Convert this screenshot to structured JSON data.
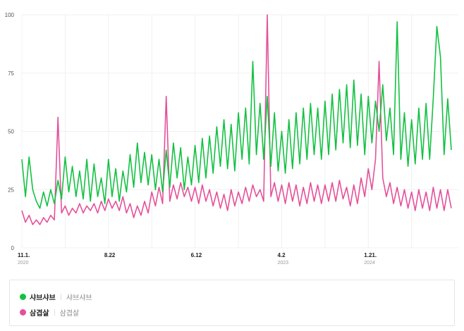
{
  "chart_data": {
    "type": "line",
    "title": "",
    "xlabel": "",
    "ylabel": "",
    "ylim": [
      0,
      100
    ],
    "yticks": [
      "0",
      "25",
      "50",
      "75",
      "100"
    ],
    "xticks": [
      {
        "index": 0,
        "label": "11.1.",
        "year": "2020"
      },
      {
        "index": 24,
        "label": "8.22",
        "year": ""
      },
      {
        "index": 48,
        "label": "6.12",
        "year": ""
      },
      {
        "index": 72,
        "label": "4.2",
        "year": "2023"
      },
      {
        "index": 96,
        "label": "1.21.",
        "year": "2024"
      }
    ],
    "grid": true,
    "legend_placement": "bottom",
    "series": [
      {
        "name": "샤브샤브",
        "sub": "샤브샤브",
        "color": "#13c142",
        "values": [
          38,
          22,
          39,
          25,
          20,
          17,
          24,
          18,
          25,
          19,
          29,
          21,
          39,
          24,
          35,
          22,
          33,
          21,
          38,
          20,
          36,
          22,
          30,
          19,
          38,
          22,
          34,
          20,
          33,
          24,
          40,
          26,
          45,
          28,
          41,
          27,
          40,
          25,
          38,
          24,
          42,
          26,
          45,
          30,
          43,
          25,
          39,
          27,
          44,
          28,
          47,
          30,
          48,
          32,
          52,
          35,
          55,
          34,
          53,
          33,
          58,
          38,
          60,
          36,
          80,
          40,
          62,
          38,
          65,
          35,
          58,
          33,
          50,
          32,
          55,
          34,
          58,
          36,
          60,
          38,
          62,
          40,
          60,
          38,
          63,
          40,
          66,
          42,
          68,
          45,
          70,
          43,
          72,
          44,
          66,
          40,
          65,
          45,
          63,
          50,
          70,
          46,
          60,
          40,
          97,
          38,
          58,
          35,
          55,
          36,
          60,
          38,
          62,
          38,
          64,
          95,
          82,
          40,
          64,
          42
        ]
      },
      {
        "name": "삼겹살",
        "sub": "삼겹살",
        "color": "#e5509a",
        "values": [
          16,
          11,
          14,
          10,
          12,
          10,
          13,
          11,
          14,
          12,
          56,
          15,
          18,
          14,
          17,
          15,
          19,
          15,
          18,
          16,
          19,
          15,
          20,
          16,
          21,
          17,
          20,
          16,
          22,
          15,
          19,
          13,
          18,
          14,
          20,
          15,
          24,
          18,
          26,
          19,
          65,
          20,
          27,
          21,
          28,
          22,
          26,
          20,
          26,
          19,
          27,
          20,
          25,
          18,
          24,
          17,
          23,
          16,
          25,
          18,
          24,
          19,
          26,
          20,
          27,
          22,
          25,
          20,
          100,
          22,
          28,
          20,
          27,
          19,
          28,
          20,
          27,
          18,
          26,
          19,
          28,
          20,
          27,
          19,
          27,
          20,
          28,
          20,
          29,
          21,
          26,
          18,
          27,
          19,
          30,
          22,
          34,
          25,
          38,
          80,
          30,
          22,
          28,
          19,
          26,
          18,
          25,
          17,
          24,
          16,
          25,
          17,
          24,
          16,
          26,
          17,
          25,
          16,
          25,
          17
        ]
      }
    ]
  }
}
